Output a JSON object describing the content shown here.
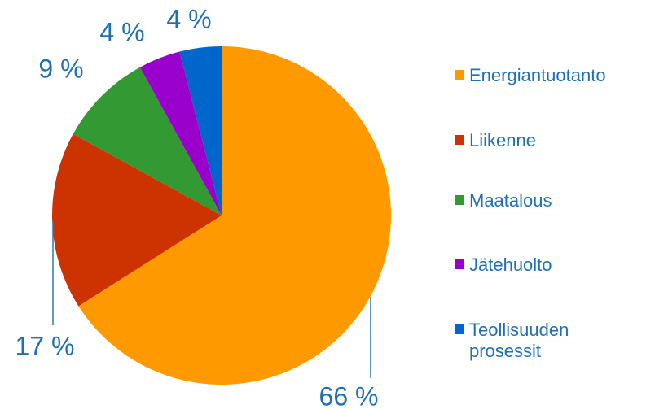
{
  "chart_data": {
    "type": "pie",
    "categories": [
      "Energiantuotanto",
      "Liikenne",
      "Maatalous",
      "Jätehuolto",
      "Teollisuuden prosessit"
    ],
    "values": [
      66,
      17,
      9,
      4,
      4
    ],
    "value_labels": [
      "66 %",
      "17 %",
      "9 %",
      "4 %",
      "4 %"
    ],
    "colors": [
      "#ff9900",
      "#cc3300",
      "#339933",
      "#9900cc",
      "#0066cc"
    ],
    "legend": "right"
  }
}
